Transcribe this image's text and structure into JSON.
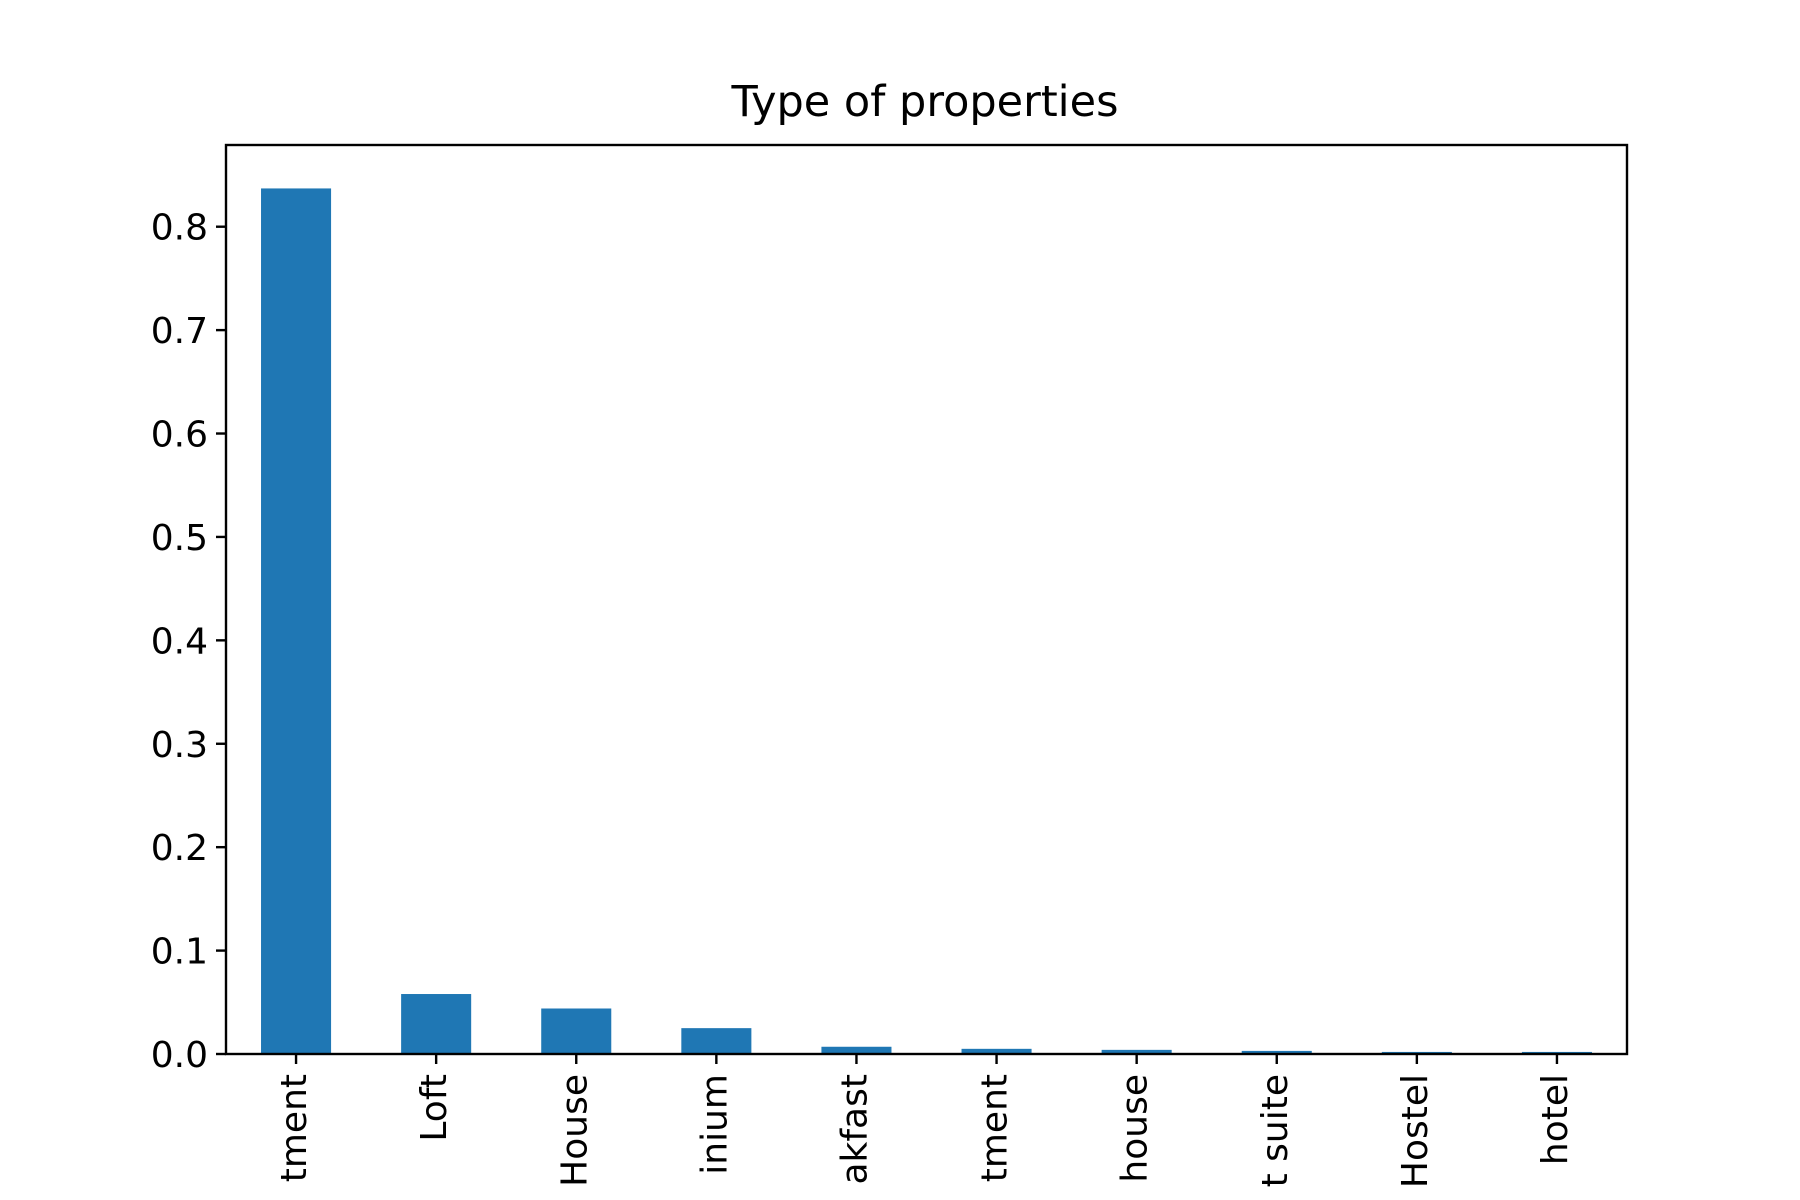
{
  "chart_data": {
    "type": "bar",
    "title": "Type of properties",
    "xlabel": "",
    "ylabel": "",
    "categories": [
      "Apartment",
      "Loft",
      "House",
      "Condominium",
      "Bed & Breakfast",
      "Serviced apartment",
      "Townhouse",
      "Guest suite",
      "Hostel",
      "Boutique hotel"
    ],
    "category_labels_visible": [
      "tment",
      "Loft",
      "House",
      "inium",
      "akfast",
      "tment",
      "house",
      "t suite",
      "Hostel",
      "hotel"
    ],
    "values": [
      0.837,
      0.058,
      0.044,
      0.025,
      0.007,
      0.005,
      0.004,
      0.003,
      0.002,
      0.002
    ],
    "ylim": [
      0,
      0.879
    ],
    "yticks": [
      0.0,
      0.1,
      0.2,
      0.3,
      0.4,
      0.5,
      0.6,
      0.7,
      0.8
    ],
    "ytick_labels": [
      "0.0",
      "0.1",
      "0.2",
      "0.3",
      "0.4",
      "0.5",
      "0.6",
      "0.7",
      "0.8"
    ],
    "bar_color": "#1f77b4",
    "grid": false,
    "legend": "none"
  }
}
